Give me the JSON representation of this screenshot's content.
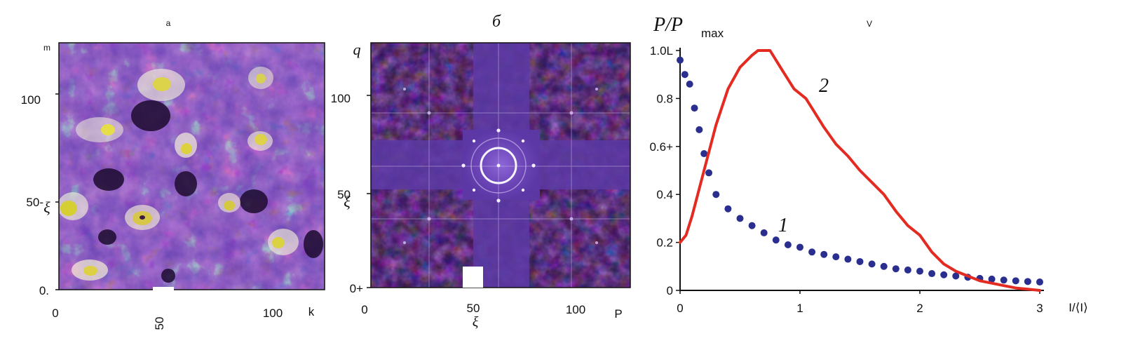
{
  "panels": {
    "a": {
      "label": "a",
      "x_ticks": [
        "0",
        "50",
        "100"
      ],
      "y_ticks": [
        "100",
        "50-",
        "0."
      ],
      "x_axis_label": "k",
      "y_axis_label": "m",
      "x_axis_glyph": "ξ"
    },
    "b": {
      "label": "б",
      "x_ticks": [
        "0",
        "50",
        "100"
      ],
      "y_ticks": [
        "100",
        "50",
        "0+"
      ],
      "x_axis_label": "P",
      "y_axis_label": "q",
      "x_axis_glyph": "ξ"
    },
    "v": {
      "label": "V"
    }
  },
  "chart_data": {
    "type": "line",
    "title": "",
    "xlabel": "I/⟨I⟩",
    "ylabel": "P/P_max",
    "ylabel_main": "P/P",
    "ylabel_sub": "max",
    "xlim": [
      0,
      3
    ],
    "ylim": [
      0,
      1.0
    ],
    "x_ticks": [
      "0",
      "1",
      "2",
      "3"
    ],
    "y_ticks": [
      "0",
      "0.2",
      "0.4",
      "0.6+",
      "0.8",
      "1.0L"
    ],
    "series": [
      {
        "name": "1",
        "style": "dotted",
        "color": "#2a2f8f",
        "x": [
          0.0,
          0.04,
          0.08,
          0.12,
          0.16,
          0.2,
          0.24,
          0.3,
          0.4,
          0.5,
          0.6,
          0.7,
          0.8,
          0.9,
          1.0,
          1.1,
          1.2,
          1.3,
          1.4,
          1.5,
          1.6,
          1.7,
          1.8,
          1.9,
          2.0,
          2.1,
          2.2,
          2.3,
          2.4,
          2.5,
          2.6,
          2.7,
          2.8,
          2.9,
          3.0
        ],
        "values": [
          0.96,
          0.9,
          0.86,
          0.76,
          0.67,
          0.57,
          0.49,
          0.4,
          0.34,
          0.3,
          0.27,
          0.24,
          0.21,
          0.19,
          0.18,
          0.16,
          0.15,
          0.14,
          0.13,
          0.12,
          0.11,
          0.1,
          0.09,
          0.085,
          0.08,
          0.07,
          0.065,
          0.06,
          0.055,
          0.05,
          0.047,
          0.043,
          0.04,
          0.037,
          0.035
        ]
      },
      {
        "name": "2",
        "style": "solid",
        "color": "#e32b22",
        "x": [
          0.0,
          0.05,
          0.1,
          0.2,
          0.3,
          0.4,
          0.5,
          0.6,
          0.65,
          0.75,
          0.85,
          0.95,
          1.05,
          1.1,
          1.2,
          1.3,
          1.4,
          1.5,
          1.6,
          1.7,
          1.8,
          1.9,
          2.0,
          2.1,
          2.2,
          2.3,
          2.4,
          2.5,
          2.6,
          2.7,
          2.8,
          2.9,
          3.0
        ],
        "values": [
          0.2,
          0.23,
          0.31,
          0.5,
          0.69,
          0.84,
          0.93,
          0.98,
          1.0,
          1.0,
          0.92,
          0.84,
          0.8,
          0.76,
          0.68,
          0.61,
          0.56,
          0.5,
          0.45,
          0.4,
          0.33,
          0.27,
          0.23,
          0.16,
          0.11,
          0.08,
          0.06,
          0.04,
          0.03,
          0.02,
          0.01,
          0.005,
          0.0
        ]
      }
    ],
    "curve_labels": [
      "1",
      "2"
    ]
  }
}
